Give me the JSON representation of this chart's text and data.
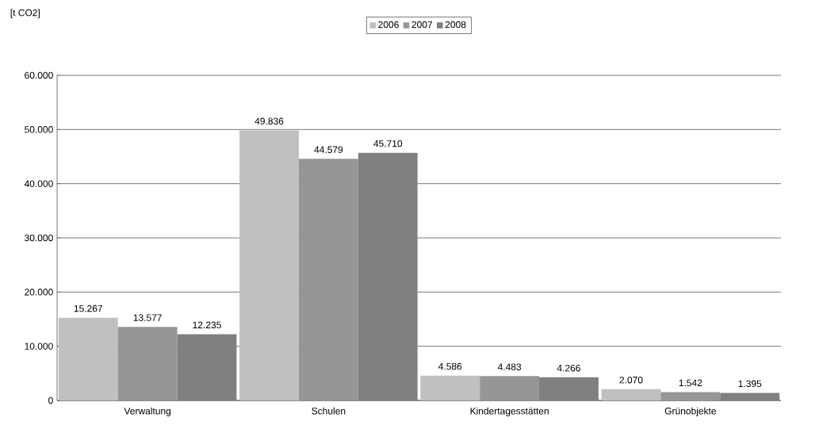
{
  "chart_data": {
    "type": "bar",
    "annotations": [
      "[t CO2]"
    ],
    "categories": [
      "Verwaltung",
      "Schulen",
      "Kindertagesstätten",
      "Grünobjekte"
    ],
    "series": [
      {
        "name": "2006",
        "color": "#c0c0c0",
        "values": [
          15267,
          49836,
          4586,
          2070
        ],
        "value_labels": [
          "15.267",
          "49.836",
          "4.586",
          "2.070"
        ]
      },
      {
        "name": "2007",
        "color": "#969696",
        "values": [
          13577,
          44579,
          4483,
          1542
        ],
        "value_labels": [
          "13.577",
          "44.579",
          "4.483",
          "1.542"
        ]
      },
      {
        "name": "2008",
        "color": "#808080",
        "values": [
          12235,
          45710,
          4266,
          1395
        ],
        "value_labels": [
          "12.235",
          "45.710",
          "4.266",
          "1.395"
        ]
      }
    ],
    "ylim": [
      0,
      60000
    ],
    "yticks": [
      {
        "value": 0,
        "label": "0"
      },
      {
        "value": 10000,
        "label": "10.000"
      },
      {
        "value": 20000,
        "label": "20.000"
      },
      {
        "value": 30000,
        "label": "30.000"
      },
      {
        "value": 40000,
        "label": "40.000"
      },
      {
        "value": 50000,
        "label": "50.000"
      },
      {
        "value": 60000,
        "label": "60.000"
      }
    ],
    "grid": "y",
    "legend": "top"
  }
}
